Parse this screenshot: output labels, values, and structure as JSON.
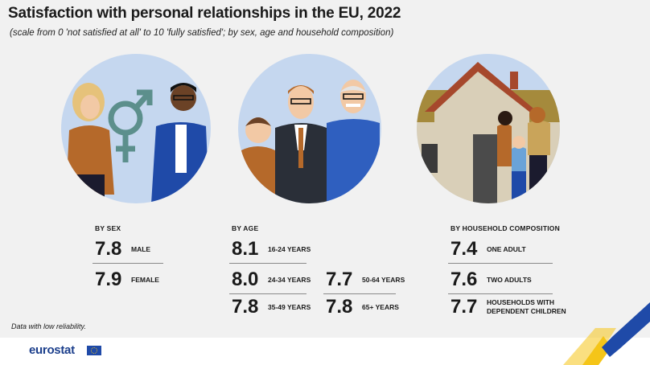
{
  "header": {
    "title": "Satisfaction with personal relationships in the EU, 2022",
    "subtitle": "(scale from 0 'not satisfied at all' to 10 'fully satisfied'; by sex, age and household composition)"
  },
  "colors": {
    "circle": "#c5d7ef",
    "sep": "#8a8a8a",
    "brand": "#1c3f8c",
    "accent_yellow": "#f5c518",
    "accent_blue": "#1f4aa8"
  },
  "chart_data": [
    {
      "type": "table",
      "title": "BY SEX",
      "categories": [
        "MALE",
        "FEMALE"
      ],
      "values": [
        7.8,
        7.9
      ]
    },
    {
      "type": "table",
      "title": "BY AGE",
      "categories": [
        "16-24 YEARS",
        "24-34 YEARS",
        "35-49 YEARS",
        "50-64 YEARS",
        "65+ YEARS"
      ],
      "values": [
        8.1,
        8.0,
        7.8,
        7.7,
        7.8
      ]
    },
    {
      "type": "table",
      "title": "BY HOUSEHOLD COMPOSITION",
      "categories": [
        "ONE ADULT",
        "TWO ADULTS",
        "HOUSEHOLDS WITH DEPENDENT CHILDREN"
      ],
      "values": [
        7.4,
        7.6,
        7.7
      ]
    }
  ],
  "display": {
    "sex": [
      {
        "val": "7.8",
        "label": "MALE"
      },
      {
        "val": "7.9",
        "label": "FEMALE"
      }
    ],
    "age": [
      {
        "val": "8.1",
        "label": "16-24 YEARS"
      },
      {
        "val": "8.0",
        "label": "24-34 YEARS"
      },
      {
        "val": "7.8",
        "label": "35-49 YEARS"
      },
      {
        "val": "7.7",
        "label": "50-64 YEARS"
      },
      {
        "val": "7.8",
        "label": "65+ YEARS"
      }
    ],
    "household": [
      {
        "val": "7.4",
        "label": "ONE ADULT"
      },
      {
        "val": "7.6",
        "label": "TWO ADULTS"
      },
      {
        "val": "7.7",
        "label1": "HOUSEHOLDS WITH",
        "label2": "DEPENDENT CHILDREN"
      }
    ]
  },
  "footer": {
    "note": "Data with low reliability.",
    "logo": "eurostat"
  },
  "icons": [
    "gender-symbol-icon",
    "family-house-icon",
    "eu-flag-icon"
  ]
}
